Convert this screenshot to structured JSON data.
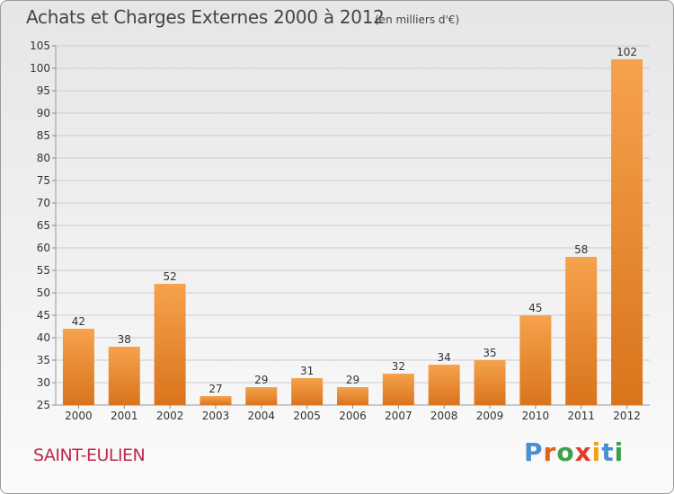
{
  "header": {
    "title": "Achats et Charges Externes 2000 à 2012",
    "subtitle": "(en milliers d'€)"
  },
  "footer": {
    "commune": "SAINT-EULIEN",
    "logo_text": "Proxiti"
  },
  "colors": {
    "bar_light": "#f6a24c",
    "bar_dark": "#d9741c",
    "grid": "#cccccc",
    "commune_text": "#c0294a",
    "logo_letters": [
      "#4a8fd1",
      "#e0621c",
      "#3aa34a",
      "#e23b2b",
      "#f0a11a",
      "#4a8fd1",
      "#3aa34a"
    ]
  },
  "chart_data": {
    "type": "bar",
    "title": "Achats et Charges Externes 2000 à 2012",
    "subtitle": "(en milliers d'€)",
    "categories": [
      "2000",
      "2001",
      "2002",
      "2003",
      "2004",
      "2005",
      "2006",
      "2007",
      "2008",
      "2009",
      "2010",
      "2011",
      "2012"
    ],
    "values": [
      42,
      38,
      52,
      27,
      29,
      31,
      29,
      32,
      34,
      35,
      45,
      58,
      102
    ],
    "value_labels": [
      "42",
      "38",
      "52",
      "27",
      "29",
      "31",
      "29",
      "32",
      "34",
      "35",
      "45",
      "58",
      "102"
    ],
    "ylim": [
      25,
      105
    ],
    "yticks": [
      25,
      30,
      35,
      40,
      45,
      50,
      55,
      60,
      65,
      70,
      75,
      80,
      85,
      90,
      95,
      100,
      105
    ],
    "ytick_labels": [
      "25",
      "30",
      "35",
      "40",
      "45",
      "50",
      "55",
      "60",
      "65",
      "70",
      "75",
      "80",
      "85",
      "90",
      "95",
      "100",
      "105"
    ],
    "grid": true,
    "xlabel": "",
    "ylabel": ""
  }
}
